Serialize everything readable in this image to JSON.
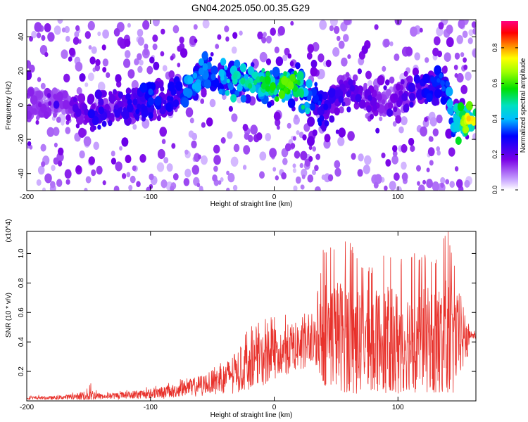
{
  "title": "GN04.2025.050.00.35.G29",
  "chart_data": [
    {
      "type": "heatmap",
      "xlabel": "Height of straight line (km)",
      "ylabel": "Frequency (Hz)",
      "xlim": [
        -200,
        163
      ],
      "ylim": [
        -50,
        50
      ],
      "xticks": [
        -200,
        -100,
        0,
        100
      ],
      "yticks": [
        -40,
        -20,
        0,
        20,
        40
      ],
      "colorbar": {
        "label": "Normalized spectral amplitude",
        "range": [
          0.0,
          0.95
        ],
        "ticks": [
          "0.0",
          "0.2",
          "0.4",
          "0.6",
          "0.8"
        ]
      },
      "ridge": {
        "x": [
          -170,
          -150,
          -130,
          -110,
          -100,
          -90,
          -80,
          -70,
          -60,
          -50,
          -40,
          -30,
          -20,
          -10,
          0,
          10,
          20,
          30,
          40,
          50,
          60,
          70,
          80,
          90,
          100,
          110,
          120,
          130,
          140,
          145,
          150,
          155,
          160
        ],
        "freq": [
          0,
          -3,
          -2,
          0,
          2,
          3,
          5,
          8,
          18,
          18,
          15,
          14,
          13,
          12,
          12,
          12,
          11,
          5,
          -3,
          5,
          10,
          6,
          2,
          0,
          5,
          8,
          10,
          11,
          12,
          -10,
          -10,
          -10,
          -9
        ],
        "amplitude": [
          0.15,
          0.3,
          0.25,
          0.3,
          0.35,
          0.3,
          0.3,
          0.4,
          0.4,
          0.35,
          0.45,
          0.5,
          0.55,
          0.55,
          0.6,
          0.65,
          0.6,
          0.4,
          0.3,
          0.25,
          0.25,
          0.2,
          0.2,
          0.15,
          0.2,
          0.25,
          0.3,
          0.35,
          0.35,
          0.5,
          0.6,
          0.8,
          0.8
        ]
      }
    },
    {
      "type": "line",
      "color": "#e8322c",
      "xlabel": "Height of straight line (km)",
      "ylabel": "SNR (10 * v/v)",
      "y_multiplier": "(x10^4)",
      "xlim": [
        -200,
        163
      ],
      "ylim": [
        0,
        1.15
      ],
      "xticks": [
        -200,
        -100,
        0,
        100
      ],
      "yticks": [
        0.2,
        0.4,
        0.6,
        0.8,
        1.0
      ],
      "x": [
        -200,
        -180,
        -160,
        -150,
        -140,
        -120,
        -100,
        -80,
        -70,
        -60,
        -50,
        -40,
        -30,
        -20,
        -10,
        0,
        10,
        20,
        30,
        35,
        40,
        50,
        60,
        70,
        80,
        90,
        100,
        110,
        120,
        130,
        140,
        150,
        155,
        158,
        163
      ],
      "y": [
        0.02,
        0.02,
        0.03,
        0.04,
        0.03,
        0.04,
        0.05,
        0.07,
        0.09,
        0.11,
        0.13,
        0.16,
        0.22,
        0.26,
        0.3,
        0.33,
        0.36,
        0.38,
        0.4,
        0.42,
        0.46,
        0.45,
        0.44,
        0.43,
        0.43,
        0.42,
        0.42,
        0.42,
        0.43,
        0.42,
        0.42,
        0.42,
        0.42,
        0.45,
        0.44
      ],
      "envelope_max": [
        0.04,
        0.04,
        0.06,
        0.14,
        0.06,
        0.07,
        0.1,
        0.14,
        0.16,
        0.2,
        0.24,
        0.3,
        0.36,
        0.5,
        0.55,
        0.58,
        0.6,
        0.62,
        0.6,
        0.75,
        1.05,
        1.05,
        1.1,
        0.95,
        0.9,
        1.0,
        0.95,
        1.0,
        1.0,
        0.95,
        1.18,
        0.75,
        0.7,
        0.5,
        0.47
      ],
      "envelope_min": [
        0.01,
        0.01,
        0.01,
        0.01,
        0.01,
        0.01,
        0.01,
        0.02,
        0.02,
        0.03,
        0.04,
        0.04,
        0.05,
        0.08,
        0.1,
        0.15,
        0.18,
        0.2,
        0.25,
        0.22,
        0.08,
        0.05,
        0.05,
        0.05,
        0.06,
        0.05,
        0.05,
        0.05,
        0.06,
        0.05,
        0.06,
        0.05,
        0.2,
        0.42,
        0.42
      ]
    }
  ]
}
